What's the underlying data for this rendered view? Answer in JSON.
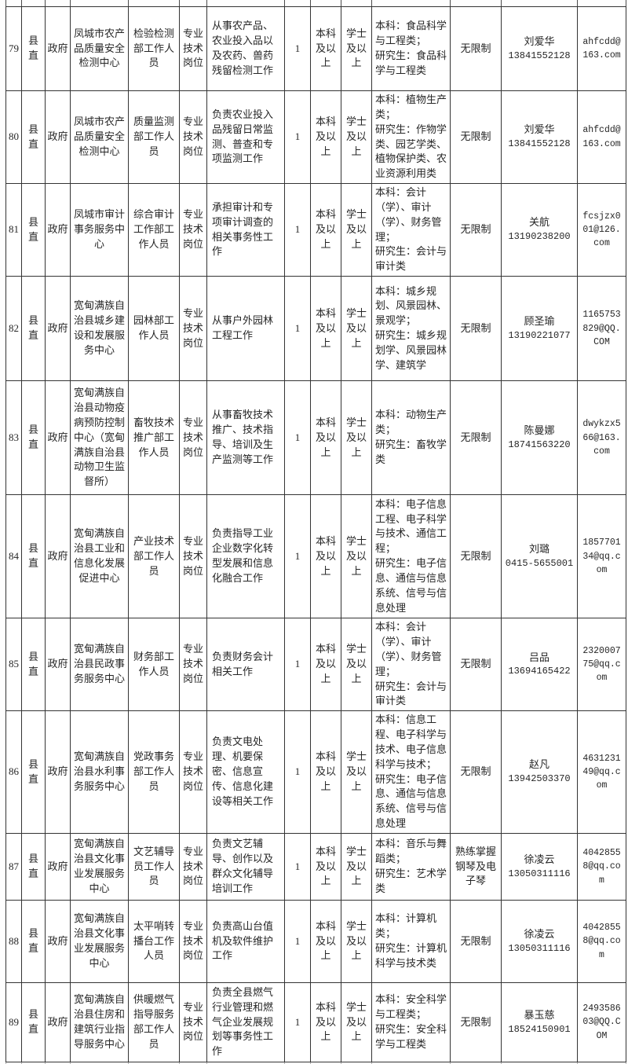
{
  "colors": {
    "border": "#343434",
    "text": "#262626",
    "background": "#ffffff"
  },
  "table": {
    "rows": [
      {
        "no": "79",
        "region": "县直",
        "authority": "政府",
        "unit": "凤城市农产品质量安全检测中心",
        "position": "检验检测部工作人员",
        "position_type": "专业技术岗位",
        "duties": "从事农产品、农业投入品以及农药、兽药残留检测工作",
        "headcount": "1",
        "education": "本科及以上",
        "degree": "学士及以上",
        "major_undergraduate": "本科：食品科学与工程类；",
        "major_graduate": "研究生：食品科学与工程类",
        "other_requirements": "无限制",
        "contact_name": "刘爱华",
        "contact_phone": "13841552128",
        "email": "ahfcdd@163.com"
      },
      {
        "no": "80",
        "region": "县直",
        "authority": "政府",
        "unit": "凤城市农产品质量安全检测中心",
        "position": "质量监测部工作人员",
        "position_type": "专业技术岗位",
        "duties": "负责农业投入品残留日常监测、普查和专项监测工作",
        "headcount": "1",
        "education": "本科及以上",
        "degree": "学士及以上",
        "major_undergraduate": "本科：植物生产类；",
        "major_graduate": "研究生：作物学类、园艺学类、植物保护类、农业资源利用类",
        "other_requirements": "无限制",
        "contact_name": "刘爱华",
        "contact_phone": "13841552128",
        "email": "ahfcdd@163.com"
      },
      {
        "no": "81",
        "region": "县直",
        "authority": "政府",
        "unit": "凤城市审计事务服务中心",
        "position": "综合审计工作部工作人员",
        "position_type": "专业技术岗位",
        "duties": "承担审计和专项审计调查的相关事务性工作",
        "headcount": "1",
        "education": "本科及以上",
        "degree": "学士及以上",
        "major_undergraduate": "本科：会计（学）、审计（学）、财务管理；",
        "major_graduate": "研究生：会计与审计类",
        "other_requirements": "无限制",
        "contact_name": "关航",
        "contact_phone": "13190238200",
        "email": "fcsjzx001@126.com"
      },
      {
        "no": "82",
        "region": "县直",
        "authority": "政府",
        "unit": "宽甸满族自治县城乡建设和发展服务中心",
        "position": "园林部工作人员",
        "position_type": "专业技术岗位",
        "duties": "从事户外园林工程工作",
        "headcount": "1",
        "education": "本科及以上",
        "degree": "学士及以上",
        "major_undergraduate": "本科：城乡规划、风景园林、景观学；",
        "major_graduate": "研究生：城乡规划学、风景园林学、建筑学",
        "other_requirements": "无限制",
        "contact_name": "顾圣瑜",
        "contact_phone": "13190221077",
        "email": "1165753829@QQ.COM"
      },
      {
        "no": "83",
        "region": "县直",
        "authority": "政府",
        "unit": "宽甸满族自治县动物疫病预防控制中心（宽甸满族自治县动物卫生监督所）",
        "position": "畜牧技术推广部工作人员",
        "position_type": "专业技术岗位",
        "duties": "从事畜牧技术推广、技术指导、培训及生产监测等工作",
        "headcount": "1",
        "education": "本科及以上",
        "degree": "学士及以上",
        "major_undergraduate": "本科：动物生产类；",
        "major_graduate": "研究生：畜牧学类",
        "other_requirements": "无限制",
        "contact_name": "陈曼娜",
        "contact_phone": "18741563220",
        "email": "dwykzx566@163.com"
      },
      {
        "no": "84",
        "region": "县直",
        "authority": "政府",
        "unit": "宽甸满族自治县工业和信息化发展促进中心",
        "position": "产业技术部工作人员",
        "position_type": "专业技术岗位",
        "duties": "负责指导工业企业数字化转型发展和信息化融合工作",
        "headcount": "1",
        "education": "本科及以上",
        "degree": "学士及以上",
        "major_undergraduate": "本科：电子信息工程、电子科学与技术、通信工程；",
        "major_graduate": "研究生：电子信息、通信与信息系统、信号与信息处理",
        "other_requirements": "无限制",
        "contact_name": "刘璐",
        "contact_phone": "0415-5655001",
        "email": "185770134@qq.com"
      },
      {
        "no": "85",
        "region": "县直",
        "authority": "政府",
        "unit": "宽甸满族自治县民政事务服务中心",
        "position": "财务部工作人员",
        "position_type": "专业技术岗位",
        "duties": "负责财务会计相关工作",
        "headcount": "1",
        "education": "本科及以上",
        "degree": "学士及以上",
        "major_undergraduate": "本科：会计（学）、审计（学）、财务管理；",
        "major_graduate": "研究生：会计与审计类",
        "other_requirements": "无限制",
        "contact_name": "吕品",
        "contact_phone": "13694165422",
        "email": "232000775@qq.com"
      },
      {
        "no": "86",
        "region": "县直",
        "authority": "政府",
        "unit": "宽甸满族自治县水利事务服务中心",
        "position": "党政事务部工作人员",
        "position_type": "专业技术岗位",
        "duties": "负责文电处理、机要保密、信息宣传、信息化建设等相关工作",
        "headcount": "1",
        "education": "本科及以上",
        "degree": "学士及以上",
        "major_undergraduate": "本科：信息工程、电子科学与技术、电子信息科学与技术；",
        "major_graduate": "研究生：电子信息、通信与信息系统、信号与信息处理",
        "other_requirements": "无限制",
        "contact_name": "赵凡",
        "contact_phone": "13942503370",
        "email": "463123149@qq.com"
      },
      {
        "no": "87",
        "region": "县直",
        "authority": "政府",
        "unit": "宽甸满族自治县文化事业发展服务中心",
        "position": "文艺辅导员工作人员",
        "position_type": "专业技术岗位",
        "duties": "负责文艺辅导、创作以及群众文化辅导培训工作",
        "headcount": "1",
        "education": "本科及以上",
        "degree": "学士及以上",
        "major_undergraduate": "本科：音乐与舞蹈类；",
        "major_graduate": "研究生：艺术学类",
        "other_requirements": "熟练掌握钢琴及电子琴",
        "contact_name": "徐凌云",
        "contact_phone": "13050311116",
        "email": "40428558@qq.com"
      },
      {
        "no": "88",
        "region": "县直",
        "authority": "政府",
        "unit": "宽甸满族自治县文化事业发展服务中心",
        "position": "太平哨转播台工作人员",
        "position_type": "专业技术岗位",
        "duties": "负责高山台值机及软件维护工作",
        "headcount": "1",
        "education": "本科及以上",
        "degree": "学士及以上",
        "major_undergraduate": "本科：计算机类；",
        "major_graduate": "研究生：计算机科学与技术类",
        "other_requirements": "无限制",
        "contact_name": "徐凌云",
        "contact_phone": "13050311116",
        "email": "40428558@qq.com"
      },
      {
        "no": "89",
        "region": "县直",
        "authority": "政府",
        "unit": "宽甸满族自治县住房和建筑行业指导服务中心",
        "position": "供暖燃气指导服务部工作人员",
        "position_type": "专业技术岗位",
        "duties": "负责全县燃气行业管理和燃气企业发展规划等事务性工作",
        "headcount": "1",
        "education": "本科及以上",
        "degree": "学士及以上",
        "major_undergraduate": "本科：安全科学与工程类；",
        "major_graduate": "研究生：安全科学与工程类",
        "other_requirements": "无限制",
        "contact_name": "暴玉慈",
        "contact_phone": "18524150901",
        "email": "249358603@QQ.COM"
      }
    ]
  }
}
